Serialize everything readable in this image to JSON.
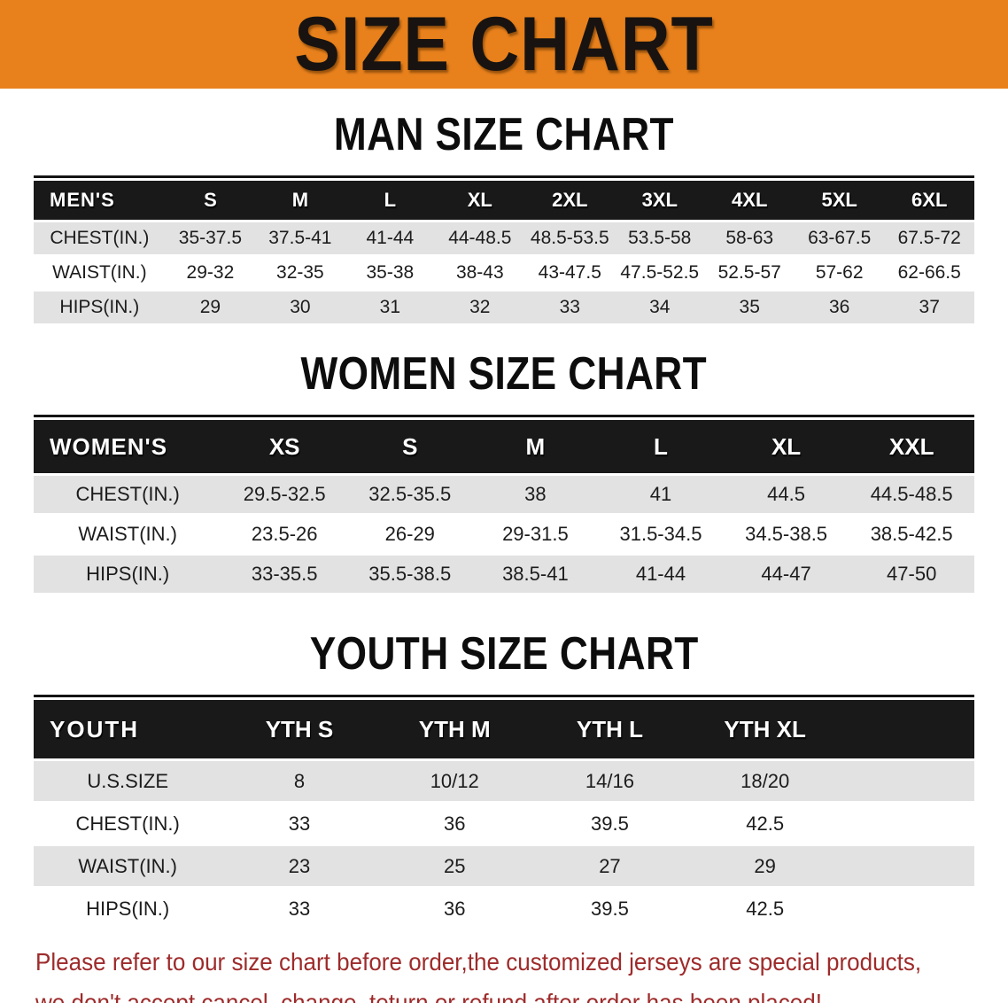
{
  "banner": {
    "title": "SIZE CHART"
  },
  "sections": [
    {
      "heading": "MAN SIZE CHART",
      "table": {
        "header_label": "MEN'S",
        "columns": [
          "S",
          "M",
          "L",
          "XL",
          "2XL",
          "3XL",
          "4XL",
          "5XL",
          "6XL"
        ],
        "rows": [
          {
            "label": "CHEST(IN.)",
            "values": [
              "35-37.5",
              "37.5-41",
              "41-44",
              "44-48.5",
              "48.5-53.5",
              "53.5-58",
              "58-63",
              "63-67.5",
              "67.5-72"
            ]
          },
          {
            "label": "WAIST(IN.)",
            "values": [
              "29-32",
              "32-35",
              "35-38",
              "38-43",
              "43-47.5",
              "47.5-52.5",
              "52.5-57",
              "57-62",
              "62-66.5"
            ]
          },
          {
            "label": "HIPS(IN.)",
            "values": [
              "29",
              "30",
              "31",
              "32",
              "33",
              "34",
              "35",
              "36",
              "37"
            ]
          }
        ]
      }
    },
    {
      "heading": "WOMEN SIZE CHART",
      "table": {
        "header_label": "WOMEN'S",
        "columns": [
          "XS",
          "S",
          "M",
          "L",
          "XL",
          "XXL"
        ],
        "rows": [
          {
            "label": "CHEST(IN.)",
            "values": [
              "29.5-32.5",
              "32.5-35.5",
              "38",
              "41",
              "44.5",
              "44.5-48.5"
            ]
          },
          {
            "label": "WAIST(IN.)",
            "values": [
              "23.5-26",
              "26-29",
              "29-31.5",
              "31.5-34.5",
              "34.5-38.5",
              "38.5-42.5"
            ]
          },
          {
            "label": "HIPS(IN.)",
            "values": [
              "33-35.5",
              "35.5-38.5",
              "38.5-41",
              "41-44",
              "44-47",
              "47-50"
            ]
          }
        ]
      }
    },
    {
      "heading": "YOUTH SIZE CHART",
      "table": {
        "header_label": "YOUTH",
        "columns": [
          "YTH S",
          "YTH M",
          "YTH L",
          "YTH XL"
        ],
        "rows": [
          {
            "label": "U.S.SIZE",
            "values": [
              "8",
              "10/12",
              "14/16",
              "18/20"
            ]
          },
          {
            "label": "CHEST(IN.)",
            "values": [
              "33",
              "36",
              "39.5",
              "42.5"
            ]
          },
          {
            "label": "WAIST(IN.)",
            "values": [
              "23",
              "25",
              "27",
              "29"
            ]
          },
          {
            "label": "HIPS(IN.)",
            "values": [
              "33",
              "36",
              "39.5",
              "42.5"
            ]
          }
        ]
      }
    }
  ],
  "disclaimer": {
    "lines": [
      "Please refer to our size chart before order,the customized jerseys are special products,",
      "we don't accept cancel, change, teturn or refund after order has been placed!"
    ]
  },
  "colors": {
    "banner_bg": "#E8811C",
    "banner_text": "#181310",
    "table_header_bg": "#191919",
    "table_header_text": "#FFFFFF",
    "row_shaded_bg": "#E2E2E2",
    "row_plain_bg": "#FFFFFF",
    "disclaimer_text": "#9E2B2B"
  }
}
